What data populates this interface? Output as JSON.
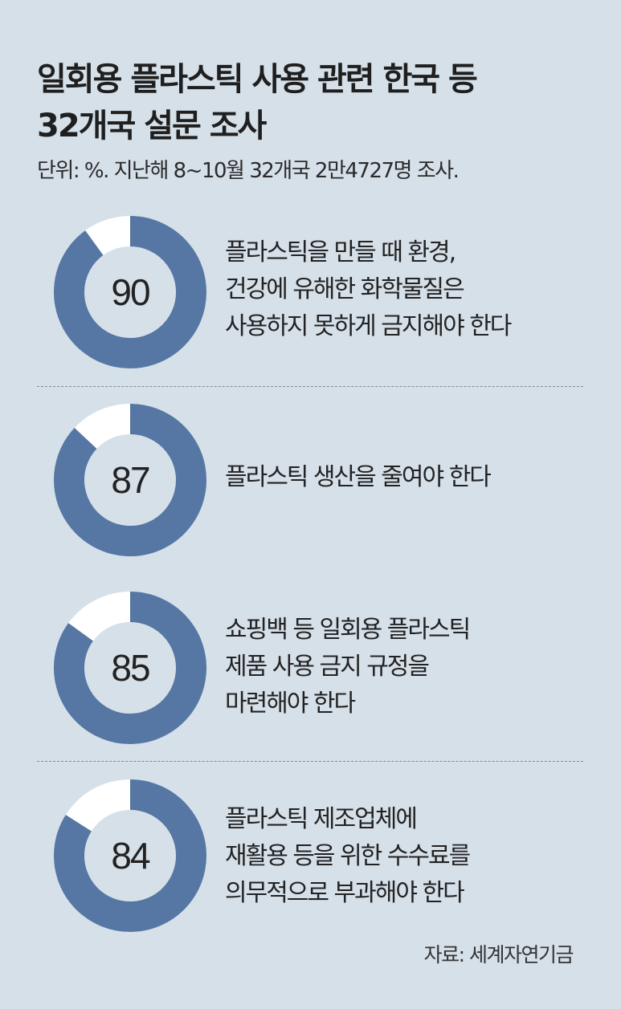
{
  "title_lines": [
    "일회용 플라스틱 사용 관련 한국 등",
    "32개국 설문 조사"
  ],
  "subtitle": "단위: %. 지난해 8~10월 32개국 2만4727명 조사.",
  "source": "자료: 세계자연기금",
  "colors": {
    "background": "#d6e0e9",
    "donut_fill": "#5677a3",
    "donut_rest": "#ffffff",
    "divider": "#8a8a8a"
  },
  "chart_data": {
    "type": "pie",
    "title": "일회용 플라스틱 사용 관련 한국 등 32개국 설문 조사",
    "unit": "%",
    "items": [
      {
        "value": 90,
        "label_lines": [
          "플라스틱을 만들 때 환경,",
          "건강에 유해한 화학물질은",
          "사용하지 못하게 금지해야 한다"
        ]
      },
      {
        "value": 87,
        "label_lines": [
          "플라스틱 생산을 줄여야 한다"
        ]
      },
      {
        "value": 85,
        "label_lines": [
          "쇼핑백 등 일회용 플라스틱",
          "제품 사용 금지 규정을",
          "마련해야 한다"
        ]
      },
      {
        "value": 84,
        "label_lines": [
          "플라스틱 제조업체에",
          "재활용 등을 위한 수수료를",
          "의무적으로 부과해야 한다"
        ]
      }
    ]
  }
}
